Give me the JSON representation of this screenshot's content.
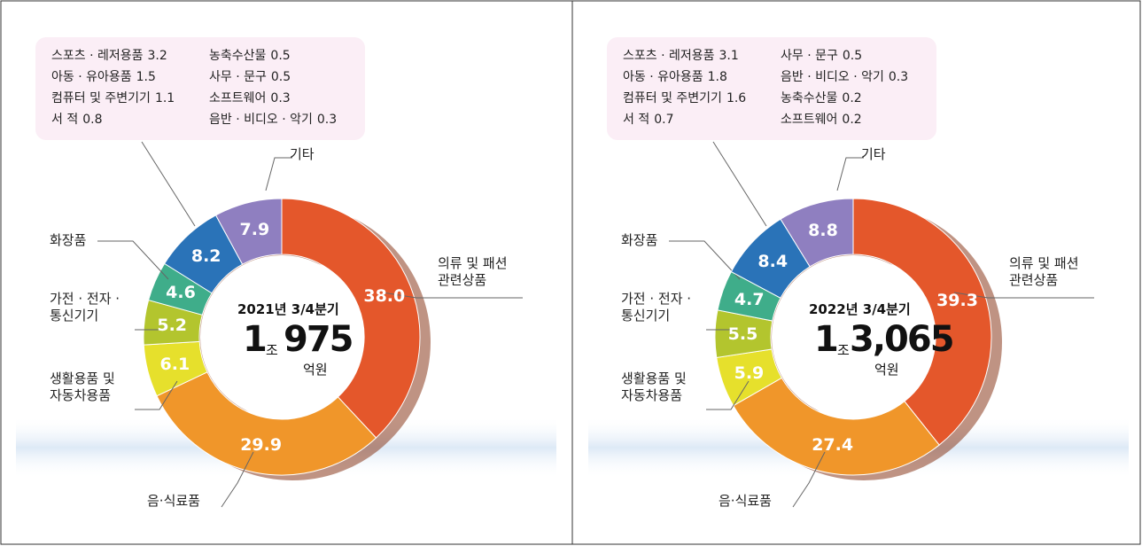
{
  "chart_data": [
    {
      "type": "pie",
      "donut": true,
      "categories": [
        "의류 및 패션\n관련상품",
        "음·식료품",
        "생활용품 및\n자동차용품",
        "가전 · 전자 ·\n통신기기",
        "화장품",
        null,
        "기타"
      ],
      "values": [
        38.0,
        29.9,
        6.1,
        5.2,
        4.6,
        8.2,
        7.9
      ],
      "value_labels": [
        "38.0",
        "29.9",
        "6.1",
        "5.2",
        "4.6",
        "8.2",
        "7.9"
      ],
      "colors": [
        "#e4572b",
        "#f0962a",
        "#e6e02c",
        "#b3c52e",
        "#3fad8a",
        "#2a73b8",
        "#8f7fc0"
      ],
      "center": {
        "period": "2021년 3/4분기",
        "trillion": "1",
        "trillion_unit": "조",
        "amount": "975",
        "unit": "억원"
      },
      "breakdown": [
        {
          "name": "스포츠 · 레저용품",
          "value": 3.2
        },
        {
          "name": "아동 · 유아용품",
          "value": 1.5
        },
        {
          "name": "컴퓨터 및 주변기기",
          "value": 1.1
        },
        {
          "name": "서 적",
          "value": 0.8
        },
        {
          "name": "농축수산물",
          "value": 0.5
        },
        {
          "name": "사무 · 문구",
          "value": 0.5
        },
        {
          "name": "소프트웨어",
          "value": 0.3
        },
        {
          "name": "음반 · 비디오 · 악기",
          "value": 0.3
        }
      ]
    },
    {
      "type": "pie",
      "donut": true,
      "categories": [
        "의류 및 패션\n관련상품",
        "음·식료품",
        "생활용품 및\n자동차용품",
        "가전 · 전자 ·\n통신기기",
        "화장품",
        null,
        "기타"
      ],
      "values": [
        39.3,
        27.4,
        5.9,
        5.5,
        4.7,
        8.4,
        8.8
      ],
      "value_labels": [
        "39.3",
        "27.4",
        "5.9",
        "5.5",
        "4.7",
        "8.4",
        "8.8"
      ],
      "colors": [
        "#e4572b",
        "#f0962a",
        "#e6e02c",
        "#b3c52e",
        "#3fad8a",
        "#2a73b8",
        "#8f7fc0"
      ],
      "center": {
        "period": "2022년 3/4분기",
        "trillion": "1",
        "trillion_unit": "조",
        "amount": "3,065",
        "unit": "억원"
      },
      "breakdown": [
        {
          "name": "스포츠 · 레저용품",
          "value": 3.1
        },
        {
          "name": "아동 · 유아용품",
          "value": 1.8
        },
        {
          "name": "컴퓨터 및 주변기기",
          "value": 1.6
        },
        {
          "name": "서 적",
          "value": 0.7
        },
        {
          "name": "사무 · 문구",
          "value": 0.5
        },
        {
          "name": "음반 · 비디오 · 악기",
          "value": 0.3
        },
        {
          "name": "농축수산물",
          "value": 0.2
        },
        {
          "name": "소프트웨어",
          "value": 0.2
        }
      ]
    }
  ]
}
